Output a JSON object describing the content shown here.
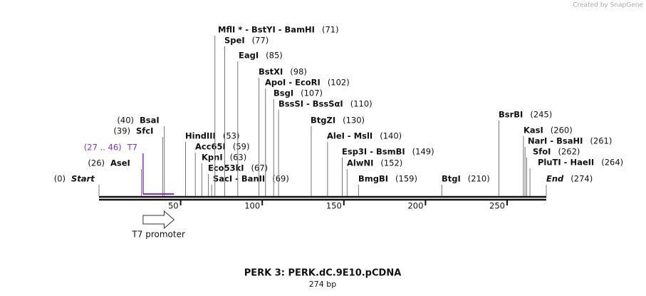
{
  "header": {
    "credit": "Created by SnapGene"
  },
  "map": {
    "title": "PERK 3: PERK.dC.9E10.pCDNA",
    "length": 274,
    "length_label": "274 bp",
    "ruler": [
      {
        "value": 50,
        "label": "50"
      },
      {
        "value": 100,
        "label": "100"
      },
      {
        "value": 150,
        "label": "150"
      },
      {
        "value": 200,
        "label": "200"
      },
      {
        "value": 250,
        "label": "250"
      }
    ],
    "sites": [
      {
        "label": "Start",
        "position": 0,
        "position_label": "(0)"
      },
      {
        "label": "AseI",
        "position": 26,
        "position_label": "(26)"
      },
      {
        "label": "SfcI",
        "position": 39,
        "position_label": "(39)"
      },
      {
        "label": "BsaI",
        "position": 40,
        "position_label": "(40)"
      },
      {
        "label": "HindIII",
        "position": 53,
        "position_label": "(53)"
      },
      {
        "label": "Acc65I",
        "position": 59,
        "position_label": "(59)"
      },
      {
        "label": "KpnI",
        "position": 63,
        "position_label": "(63)"
      },
      {
        "label": "Eco53kI",
        "position": 67,
        "position_label": "(67)"
      },
      {
        "label": "SacI  - BanII",
        "position": 69,
        "position_label": "(69)"
      },
      {
        "label": "MflI *  - BstYI  - BamHI",
        "position": 71,
        "position_label": "(71)"
      },
      {
        "label": "SpeI",
        "position": 77,
        "position_label": "(77)"
      },
      {
        "label": "EagI",
        "position": 85,
        "position_label": "(85)"
      },
      {
        "label": "BstXI",
        "position": 98,
        "position_label": "(98)"
      },
      {
        "label": "ApoI  - EcoRI",
        "position": 102,
        "position_label": "(102)"
      },
      {
        "label": "BsgI",
        "position": 107,
        "position_label": "(107)"
      },
      {
        "label": "BssSI  - BssSαI",
        "position": 110,
        "position_label": "(110)"
      },
      {
        "label": "BtgZI",
        "position": 130,
        "position_label": "(130)"
      },
      {
        "label": "AleI  - MslI",
        "position": 140,
        "position_label": "(140)"
      },
      {
        "label": "Esp3I  - BsmBI",
        "position": 149,
        "position_label": "(149)"
      },
      {
        "label": "AlwNI",
        "position": 152,
        "position_label": "(152)"
      },
      {
        "label": "BmgBI",
        "position": 159,
        "position_label": "(159)"
      },
      {
        "label": "BtgI",
        "position": 210,
        "position_label": "(210)"
      },
      {
        "label": "BsrBI",
        "position": 245,
        "position_label": "(245)"
      },
      {
        "label": "KasI",
        "position": 260,
        "position_label": "(260)"
      },
      {
        "label": "NarI  - BsaHI",
        "position": 261,
        "position_label": "(261)"
      },
      {
        "label": "SfoI",
        "position": 262,
        "position_label": "(262)"
      },
      {
        "label": "PluTI  - HaeII",
        "position": 264,
        "position_label": "(264)"
      },
      {
        "label": "End",
        "position": 274,
        "position_label": "(274)"
      }
    ],
    "feature": {
      "name": "T7",
      "start": 27,
      "end": 46,
      "range_label": "(27 .. 46)",
      "color": "#8a2be2",
      "promoter_label": "T7 promoter"
    }
  }
}
